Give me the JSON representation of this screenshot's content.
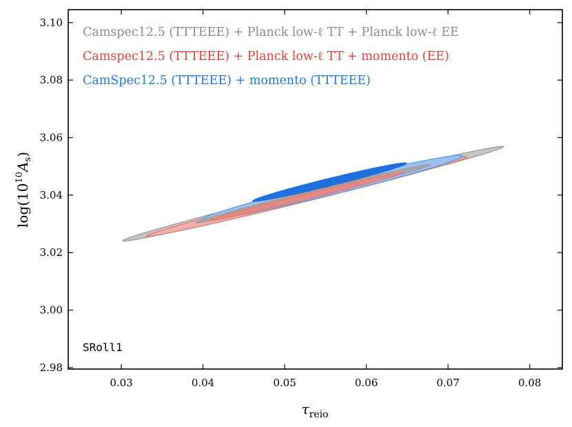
{
  "chart_data": {
    "type": "contour",
    "xlabel_symbol": "τ",
    "xlabel_subscript": "reio",
    "ylabel_prefix": "log(10",
    "ylabel_exponent": "10",
    "ylabel_var": "A",
    "ylabel_subscript": "s",
    "ylabel_suffix": ")",
    "xlim": [
      0.0235,
      0.084
    ],
    "ylim": [
      2.9795,
      3.1045
    ],
    "xticks": [
      0.03,
      0.04,
      0.05,
      0.06,
      0.07,
      0.08
    ],
    "xtick_labels": [
      "0.03",
      "0.04",
      "0.05",
      "0.06",
      "0.07",
      "0.08"
    ],
    "yticks": [
      2.98,
      3.0,
      3.02,
      3.04,
      3.06,
      3.08,
      3.1
    ],
    "ytick_labels": [
      "2.98",
      "3.00",
      "3.02",
      "3.04",
      "3.06",
      "3.08",
      "3.10"
    ],
    "grid": false,
    "legend_position": "top-left",
    "annotation": "SRoll1",
    "series": [
      {
        "name": "Camspec12.5 (TTTEEE) + Planck low-ℓ TT + Planck low-ℓ EE",
        "color": "#8c8c8c",
        "contours": [
          {
            "level": "95%",
            "fill": "#c6c6c6",
            "stroke": "#9a9a9a",
            "center": [
              0.0535,
              3.0405
            ],
            "a": 0.0285,
            "b": 0.00155,
            "angle_deg": 35.2
          },
          {
            "level": "68%",
            "fill": "#a8a8a8",
            "stroke": "#9a9a9a",
            "center": [
              0.0535,
              3.0405
            ],
            "a": 0.0175,
            "b": 0.00095,
            "angle_deg": 35.2
          }
        ]
      },
      {
        "name": "Camspec12.5 (TTTEEE) + Planck low-ℓ TT + momento (EE)",
        "color": "#e2403a",
        "contours": [
          {
            "level": "95%",
            "fill": "#eeb0ab",
            "stroke": "#e07a74",
            "center": [
              0.0527,
              3.0395
            ],
            "a": 0.024,
            "b": 0.00135,
            "angle_deg": 35.2
          },
          {
            "level": "68%",
            "fill": "#e28a85",
            "stroke": "#e07a74",
            "center": [
              0.0527,
              3.0395
            ],
            "a": 0.0145,
            "b": 0.0008,
            "angle_deg": 35.2
          }
        ]
      },
      {
        "name": "CamSpec12.5 (TTTEEE) + momento (TTTEEE)",
        "color": "#1f78e0",
        "contours": [
          {
            "level": "95%",
            "fill": "#9fbfee",
            "stroke": "#5b9de8",
            "center": [
              0.0558,
              3.0425
            ],
            "a": 0.0195,
            "b": 0.0019,
            "angle_deg": 35.2
          },
          {
            "level": "68%",
            "fill": "#1f6fde",
            "stroke": "#1f6fde",
            "center": [
              0.0555,
              3.0445
            ],
            "a": 0.0115,
            "b": 0.0011,
            "angle_deg": 35.2
          }
        ]
      }
    ]
  }
}
